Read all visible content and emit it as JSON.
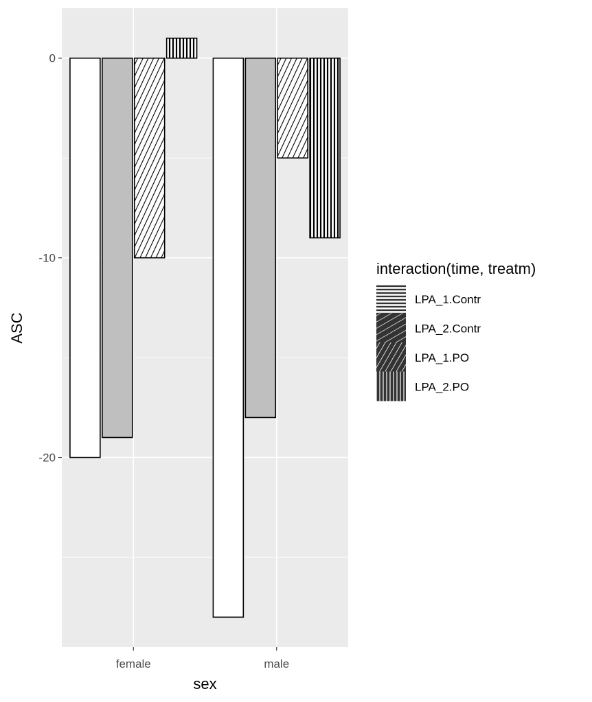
{
  "chart_data": {
    "type": "bar",
    "xlabel": "sex",
    "ylabel": "ASC",
    "categories": [
      "female",
      "male"
    ],
    "ylim": [
      -29.5,
      2.5
    ],
    "yticks": [
      0,
      -10,
      -20
    ],
    "grid": true,
    "legend": {
      "title": "interaction(time, treatm)",
      "placement": "right"
    },
    "series": [
      {
        "name": "LPA_1.Contr",
        "values": [
          -20,
          -28
        ],
        "fill": "#ffffff",
        "pattern": "none"
      },
      {
        "name": "LPA_2.Contr",
        "values": [
          -19,
          -18
        ],
        "fill": "#bfbfbf",
        "pattern": "none"
      },
      {
        "name": "LPA_1.PO",
        "values": [
          -10,
          -5
        ],
        "fill": "#ffffff",
        "pattern": "diagonal"
      },
      {
        "name": "LPA_2.PO",
        "values": [
          1,
          -9
        ],
        "fill": "#ffffff",
        "pattern": "vertical"
      }
    ],
    "legend_key_patterns": [
      "horizontal",
      "crosshatch",
      "diagonal",
      "vertical"
    ],
    "colors": {
      "panel": "#ebebeb",
      "grid": "#ffffff",
      "bar_stroke": "#000000",
      "legend_key": "#333333"
    }
  }
}
